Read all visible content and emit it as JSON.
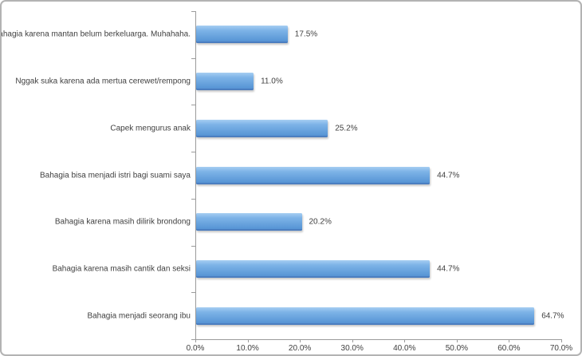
{
  "style": {
    "background_color": "#ffffff",
    "frame_border_color": "#b3b3b3",
    "axis_color": "#9b9b9b",
    "text_color": "#3f3f3f",
    "bar_gradient_top": "#a6cef2",
    "bar_gradient_bottom": "#5693d4",
    "bar_edge_color": "#4b7ec0"
  },
  "chart_data": {
    "type": "bar",
    "orientation": "horizontal",
    "grid": false,
    "legend": false,
    "xlim": [
      0,
      70
    ],
    "x_tick_values": [
      0,
      10,
      20,
      30,
      40,
      50,
      60,
      70
    ],
    "x_tick_labels": [
      "0.0%",
      "10.0%",
      "20.0%",
      "30.0%",
      "40.0%",
      "50.0%",
      "60.0%",
      "70.0%"
    ],
    "categories": [
      "Bahagia karena mantan belum berkeluarga. Muhahaha.",
      "Nggak suka karena ada mertua cerewet/rempong",
      "Capek mengurus anak",
      "Bahagia bisa menjadi istri bagi suami saya",
      "Bahagia karena masih dilirik brondong",
      "Bahagia karena masih cantik dan seksi",
      "Bahagia menjadi seorang ibu"
    ],
    "values": [
      17.5,
      11.0,
      25.2,
      44.7,
      20.2,
      44.7,
      64.7
    ],
    "data_labels": [
      "17.5%",
      "11.0%",
      "25.2%",
      "44.7%",
      "20.2%",
      "44.7%",
      "64.7%"
    ]
  }
}
